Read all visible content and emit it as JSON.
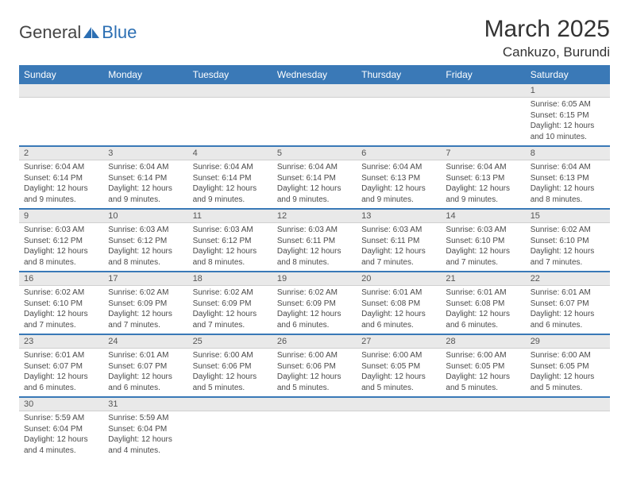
{
  "brand": {
    "part1": "General",
    "part2": "Blue"
  },
  "title": "March 2025",
  "location": "Cankuzo, Burundi",
  "styling": {
    "header_bg": "#3a79b7",
    "header_fg": "#ffffff",
    "daynum_bg": "#e9e9e9",
    "row_divider": "#3a79b7",
    "body_text": "#4a4a4a",
    "page_bg": "#ffffff",
    "title_fontsize": 30,
    "location_fontsize": 17,
    "dayheader_fontsize": 12,
    "cell_fontsize": 10
  },
  "day_headers": [
    "Sunday",
    "Monday",
    "Tuesday",
    "Wednesday",
    "Thursday",
    "Friday",
    "Saturday"
  ],
  "weeks": [
    [
      null,
      null,
      null,
      null,
      null,
      null,
      {
        "n": "1",
        "sr": "6:05 AM",
        "ss": "6:15 PM",
        "dl": "12 hours and 10 minutes."
      }
    ],
    [
      {
        "n": "2",
        "sr": "6:04 AM",
        "ss": "6:14 PM",
        "dl": "12 hours and 9 minutes."
      },
      {
        "n": "3",
        "sr": "6:04 AM",
        "ss": "6:14 PM",
        "dl": "12 hours and 9 minutes."
      },
      {
        "n": "4",
        "sr": "6:04 AM",
        "ss": "6:14 PM",
        "dl": "12 hours and 9 minutes."
      },
      {
        "n": "5",
        "sr": "6:04 AM",
        "ss": "6:14 PM",
        "dl": "12 hours and 9 minutes."
      },
      {
        "n": "6",
        "sr": "6:04 AM",
        "ss": "6:13 PM",
        "dl": "12 hours and 9 minutes."
      },
      {
        "n": "7",
        "sr": "6:04 AM",
        "ss": "6:13 PM",
        "dl": "12 hours and 9 minutes."
      },
      {
        "n": "8",
        "sr": "6:04 AM",
        "ss": "6:13 PM",
        "dl": "12 hours and 8 minutes."
      }
    ],
    [
      {
        "n": "9",
        "sr": "6:03 AM",
        "ss": "6:12 PM",
        "dl": "12 hours and 8 minutes."
      },
      {
        "n": "10",
        "sr": "6:03 AM",
        "ss": "6:12 PM",
        "dl": "12 hours and 8 minutes."
      },
      {
        "n": "11",
        "sr": "6:03 AM",
        "ss": "6:12 PM",
        "dl": "12 hours and 8 minutes."
      },
      {
        "n": "12",
        "sr": "6:03 AM",
        "ss": "6:11 PM",
        "dl": "12 hours and 8 minutes."
      },
      {
        "n": "13",
        "sr": "6:03 AM",
        "ss": "6:11 PM",
        "dl": "12 hours and 7 minutes."
      },
      {
        "n": "14",
        "sr": "6:03 AM",
        "ss": "6:10 PM",
        "dl": "12 hours and 7 minutes."
      },
      {
        "n": "15",
        "sr": "6:02 AM",
        "ss": "6:10 PM",
        "dl": "12 hours and 7 minutes."
      }
    ],
    [
      {
        "n": "16",
        "sr": "6:02 AM",
        "ss": "6:10 PM",
        "dl": "12 hours and 7 minutes."
      },
      {
        "n": "17",
        "sr": "6:02 AM",
        "ss": "6:09 PM",
        "dl": "12 hours and 7 minutes."
      },
      {
        "n": "18",
        "sr": "6:02 AM",
        "ss": "6:09 PM",
        "dl": "12 hours and 7 minutes."
      },
      {
        "n": "19",
        "sr": "6:02 AM",
        "ss": "6:09 PM",
        "dl": "12 hours and 6 minutes."
      },
      {
        "n": "20",
        "sr": "6:01 AM",
        "ss": "6:08 PM",
        "dl": "12 hours and 6 minutes."
      },
      {
        "n": "21",
        "sr": "6:01 AM",
        "ss": "6:08 PM",
        "dl": "12 hours and 6 minutes."
      },
      {
        "n": "22",
        "sr": "6:01 AM",
        "ss": "6:07 PM",
        "dl": "12 hours and 6 minutes."
      }
    ],
    [
      {
        "n": "23",
        "sr": "6:01 AM",
        "ss": "6:07 PM",
        "dl": "12 hours and 6 minutes."
      },
      {
        "n": "24",
        "sr": "6:01 AM",
        "ss": "6:07 PM",
        "dl": "12 hours and 6 minutes."
      },
      {
        "n": "25",
        "sr": "6:00 AM",
        "ss": "6:06 PM",
        "dl": "12 hours and 5 minutes."
      },
      {
        "n": "26",
        "sr": "6:00 AM",
        "ss": "6:06 PM",
        "dl": "12 hours and 5 minutes."
      },
      {
        "n": "27",
        "sr": "6:00 AM",
        "ss": "6:05 PM",
        "dl": "12 hours and 5 minutes."
      },
      {
        "n": "28",
        "sr": "6:00 AM",
        "ss": "6:05 PM",
        "dl": "12 hours and 5 minutes."
      },
      {
        "n": "29",
        "sr": "6:00 AM",
        "ss": "6:05 PM",
        "dl": "12 hours and 5 minutes."
      }
    ],
    [
      {
        "n": "30",
        "sr": "5:59 AM",
        "ss": "6:04 PM",
        "dl": "12 hours and 4 minutes."
      },
      {
        "n": "31",
        "sr": "5:59 AM",
        "ss": "6:04 PM",
        "dl": "12 hours and 4 minutes."
      },
      null,
      null,
      null,
      null,
      null
    ]
  ],
  "labels": {
    "sunrise": "Sunrise: ",
    "sunset": "Sunset: ",
    "daylight": "Daylight: "
  }
}
